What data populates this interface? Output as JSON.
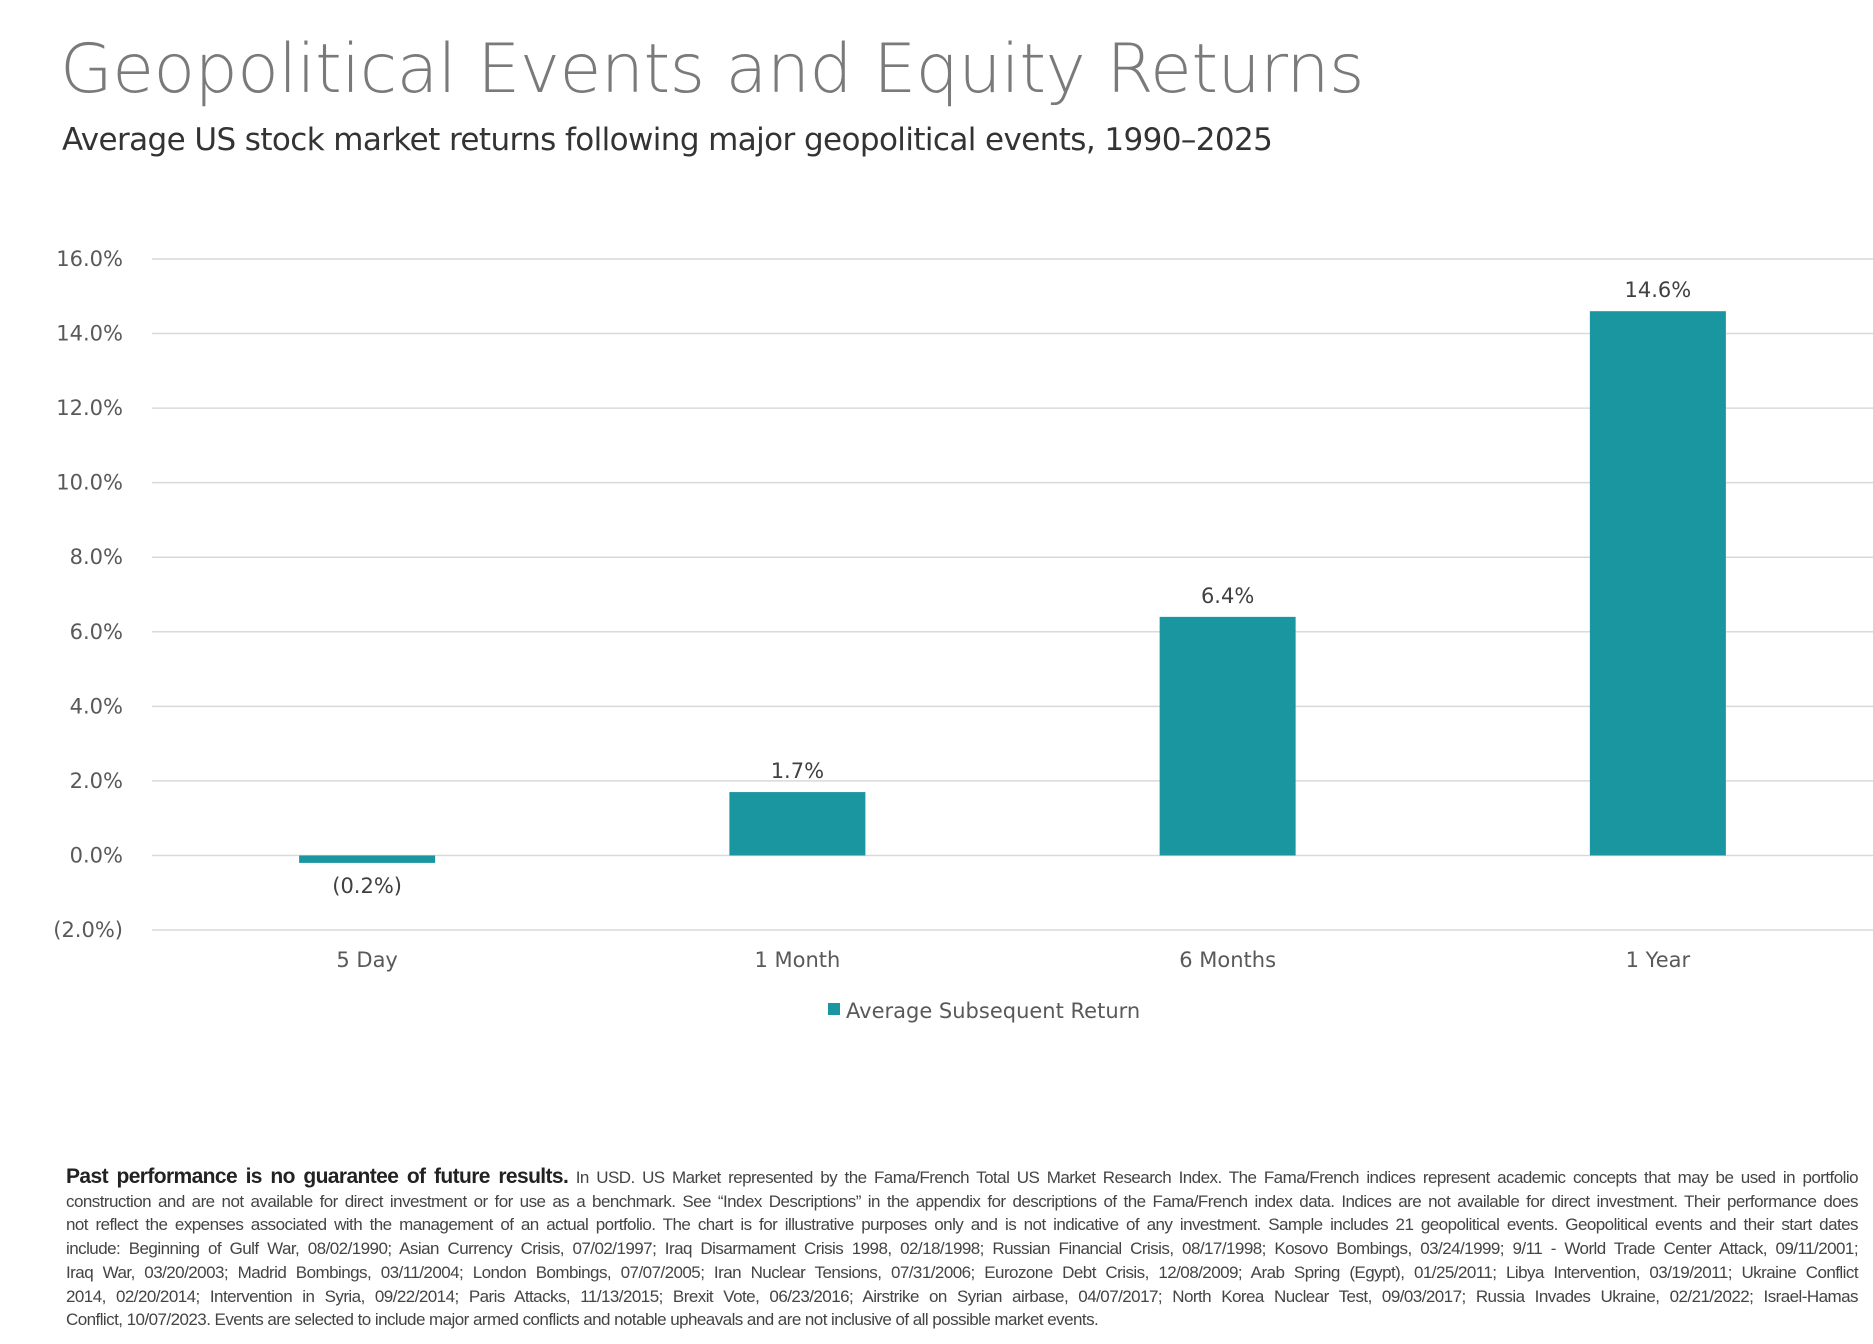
{
  "title": "Geopolitical Events and Equity Returns",
  "subtitle": "Average US stock market returns following major geopolitical events, 1990–2025",
  "chart_data": {
    "type": "bar",
    "categories": [
      "5 Day",
      "1 Month",
      "6 Months",
      "1 Year"
    ],
    "series": [
      {
        "name": "Average Subsequent Return",
        "values": [
          -0.2,
          1.7,
          6.4,
          14.6
        ],
        "color": "#1a96a0"
      }
    ],
    "data_labels": [
      "(0.2%)",
      "1.7%",
      "6.4%",
      "14.6%"
    ],
    "yticks": [
      16,
      14,
      12,
      10,
      8,
      6,
      4,
      2,
      0,
      -2
    ],
    "ytick_labels": [
      "16.0%",
      "14.0%",
      "12.0%",
      "10.0%",
      "8.0%",
      "6.0%",
      "4.0%",
      "2.0%",
      "0.0%",
      "(2.0%)"
    ],
    "ylim": [
      -2,
      16
    ],
    "grid": true,
    "legend_position": "bottom-center",
    "xlabel": "",
    "ylabel": ""
  },
  "footnote": {
    "bold": "Past performance is no guarantee of future results.",
    "lines": [
      " In USD. US Market represented by the Fama/French Total US Market Research Index. The Fama/French indices represent academic concepts that may be used in portfolio",
      "construction and are not available for direct investment or for use as a benchmark. See “Index Descriptions” in the appendix for descriptions of the Fama/French index data. Indices are not available for direct investment. Their performance does",
      "not reflect the expenses associated with the management of an actual portfolio. The chart is for illustrative purposes only and is not indicative of any investment. Sample includes 21 geopolitical events. Geopolitical events and their start dates",
      "include: Beginning of Gulf War, 08/02/1990; Asian Currency Crisis, 07/02/1997; Iraq Disarmament Crisis 1998, 02/18/1998; Russian Financial Crisis, 08/17/1998; Kosovo Bombings, 03/24/1999; 9/11 - World Trade Center Attack, 09/11/2001;",
      "Iraq War, 03/20/2003; Madrid Bombings, 03/11/2004; London Bombings, 07/07/2005; Iran Nuclear Tensions, 07/31/2006; Eurozone Debt Crisis, 12/08/2009; Arab Spring (Egypt), 01/25/2011; Libya Intervention, 03/19/2011; Ukraine Conflict",
      "2014, 02/20/2014; Intervention in Syria, 09/22/2014; Paris Attacks, 11/13/2015; Brexit Vote, 06/23/2016; Airstrike on Syrian airbase, 04/07/2017; North Korea Nuclear Test, 09/03/2017; Russia Invades Ukraine, 02/21/2022; Israel-Hamas",
      "Conflict, 10/07/2023. Events are selected to include major armed conflicts and notable upheavals and are not inclusive of all possible market events."
    ]
  }
}
